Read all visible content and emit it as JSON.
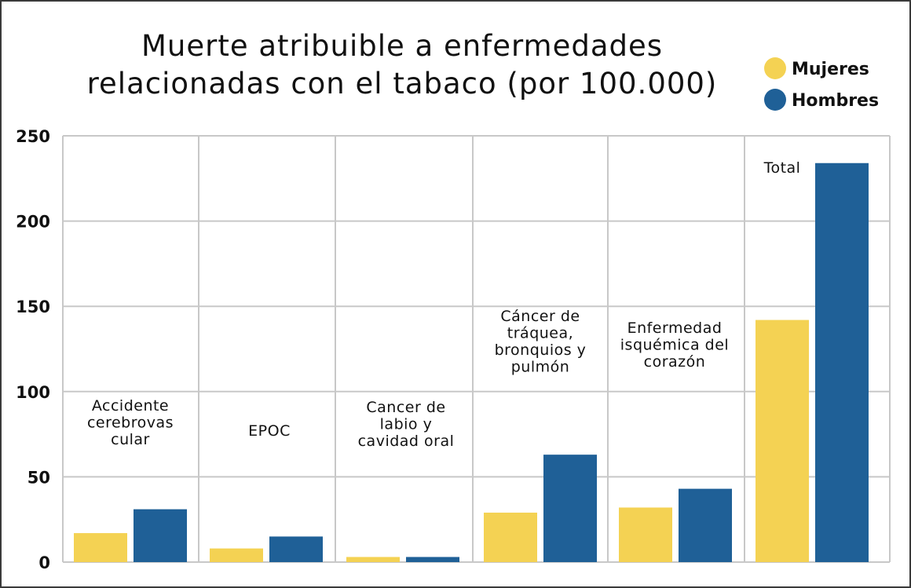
{
  "chart_data": {
    "type": "bar",
    "title_lines": [
      "Muerte atribuible a enfermedades",
      "relacionadas con el tabaco (por 100.000)"
    ],
    "categories": [
      [
        "Accidente",
        "cerebrovas",
        "cular"
      ],
      [
        "EPOC"
      ],
      [
        "Cancer de",
        "labio y",
        "cavidad oral"
      ],
      [
        "Cáncer de",
        "tráquea,",
        "bronquios y",
        "pulmón"
      ],
      [
        "Enfermedad",
        "isquémica del",
        "corazón"
      ],
      [
        "Total"
      ]
    ],
    "series": [
      {
        "name": "Mujeres",
        "color": "#f4d253",
        "values": [
          17,
          8,
          3,
          29,
          32,
          142
        ]
      },
      {
        "name": "Hombres",
        "color": "#1f6097",
        "values": [
          31,
          15,
          3,
          63,
          43,
          234
        ]
      }
    ],
    "y_ticks": [
      "0",
      "50",
      "100",
      "150",
      "200",
      "250"
    ],
    "ylim": [
      0,
      250
    ],
    "grid": true,
    "legend_position": "top-right"
  }
}
